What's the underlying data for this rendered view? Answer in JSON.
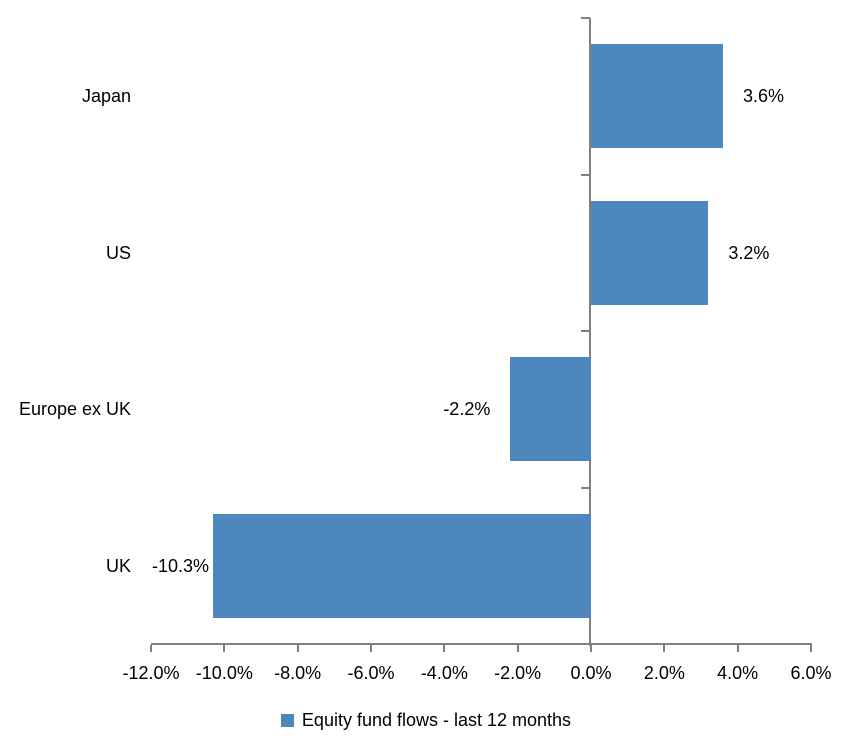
{
  "chart_data": {
    "type": "bar",
    "orientation": "horizontal",
    "title": "",
    "categories": [
      "Japan",
      "US",
      "Europe ex UK",
      "UK"
    ],
    "values": [
      3.6,
      3.2,
      -2.2,
      -10.3
    ],
    "data_labels": [
      "3.6%",
      "3.2%",
      "-2.2%",
      "-10.3%"
    ],
    "series": [
      {
        "name": "Equity fund flows - last 12 months",
        "values": [
          3.6,
          3.2,
          -2.2,
          -10.3
        ]
      }
    ],
    "xlim": [
      -12,
      6
    ],
    "x_ticks": [
      -12,
      -10,
      -8,
      -6,
      -4,
      -2,
      0,
      2,
      4,
      6
    ],
    "x_tick_labels": [
      "-12.0%",
      "-10.0%",
      "-8.0%",
      "-6.0%",
      "-4.0%",
      "-2.0%",
      "0.0%",
      "2.0%",
      "4.0%",
      "6.0%"
    ],
    "grid": false,
    "legend": {
      "position": "bottom",
      "label": "Equity fund flows - last 12 months"
    },
    "colors": {
      "bar": "#4E87BD",
      "axis": "#808080",
      "text": "#000000",
      "background": "#FFFFFF"
    }
  }
}
